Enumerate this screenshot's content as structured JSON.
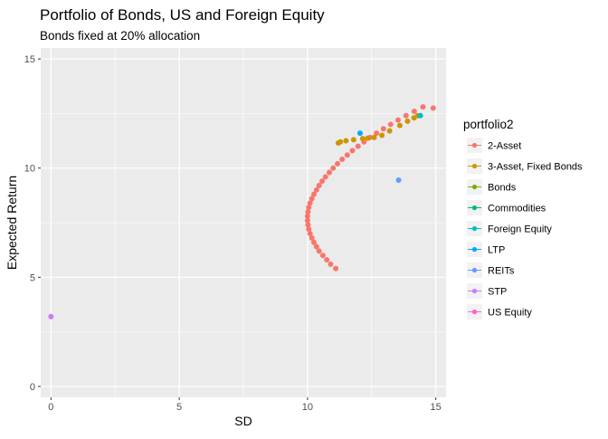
{
  "chart_data": {
    "type": "scatter",
    "title": "Portfolio of Bonds, US and Foreign Equity",
    "subtitle": "Bonds fixed at 20% allocation",
    "xlabel": "SD",
    "ylabel": "Expected Return",
    "xlim": [
      -0.4,
      15.4
    ],
    "ylim": [
      -0.5,
      15.5
    ],
    "x_ticks": [
      0,
      5,
      10,
      15
    ],
    "x_tick_labels": [
      "0",
      "5",
      "10",
      "15"
    ],
    "y_ticks": [
      0,
      5,
      10,
      15
    ],
    "y_tick_labels": [
      "0",
      "5",
      "10",
      "15"
    ],
    "grid": true,
    "legend_position": "right",
    "legend_title": "portfolio2",
    "series": [
      {
        "name": "2-Asset",
        "color": "#F8766D",
        "points": [
          [
            11.1,
            5.4
          ],
          [
            10.9,
            5.6
          ],
          [
            10.75,
            5.8
          ],
          [
            10.6,
            6.0
          ],
          [
            10.45,
            6.2
          ],
          [
            10.35,
            6.4
          ],
          [
            10.25,
            6.6
          ],
          [
            10.17,
            6.8
          ],
          [
            10.1,
            7.0
          ],
          [
            10.05,
            7.2
          ],
          [
            10.02,
            7.4
          ],
          [
            10.0,
            7.6
          ],
          [
            10.0,
            7.8
          ],
          [
            10.02,
            8.0
          ],
          [
            10.05,
            8.2
          ],
          [
            10.1,
            8.4
          ],
          [
            10.17,
            8.6
          ],
          [
            10.25,
            8.8
          ],
          [
            10.35,
            9.0
          ],
          [
            10.45,
            9.2
          ],
          [
            10.57,
            9.4
          ],
          [
            10.7,
            9.6
          ],
          [
            10.85,
            9.8
          ],
          [
            11.0,
            10.0
          ],
          [
            11.17,
            10.2
          ],
          [
            11.35,
            10.4
          ],
          [
            11.55,
            10.6
          ],
          [
            11.75,
            10.8
          ],
          [
            11.97,
            11.0
          ],
          [
            12.2,
            11.2
          ],
          [
            12.44,
            11.4
          ],
          [
            12.69,
            11.6
          ],
          [
            12.96,
            11.8
          ],
          [
            13.24,
            12.0
          ],
          [
            13.53,
            12.2
          ],
          [
            13.84,
            12.4
          ],
          [
            14.16,
            12.6
          ],
          [
            14.5,
            12.8
          ],
          [
            14.9,
            12.75
          ]
        ]
      },
      {
        "name": "3-Asset, Fixed Bonds",
        "color": "#CD9600",
        "points": [
          [
            11.2,
            11.15
          ],
          [
            11.28,
            11.2
          ],
          [
            11.5,
            11.25
          ],
          [
            11.8,
            11.3
          ],
          [
            12.15,
            11.35
          ],
          [
            12.35,
            11.37
          ],
          [
            12.6,
            11.4
          ],
          [
            12.9,
            11.5
          ],
          [
            13.2,
            11.7
          ],
          [
            13.6,
            11.95
          ],
          [
            13.9,
            12.15
          ],
          [
            14.15,
            12.3
          ],
          [
            14.3,
            12.4
          ]
        ]
      },
      {
        "name": "Bonds",
        "color": "#7CAE00",
        "points": []
      },
      {
        "name": "Commodities",
        "color": "#00BE67",
        "points": []
      },
      {
        "name": "Foreign Equity",
        "color": "#00BFC4",
        "points": [
          [
            14.4,
            12.4
          ]
        ]
      },
      {
        "name": "LTP",
        "color": "#00A9FF",
        "points": [
          [
            12.05,
            11.6
          ]
        ]
      },
      {
        "name": "REITs",
        "color": "#619CFF",
        "points": [
          [
            13.55,
            9.45
          ]
        ]
      },
      {
        "name": "STP",
        "color": "#C77CFF",
        "points": [
          [
            0.0,
            3.2
          ]
        ]
      },
      {
        "name": "US Equity",
        "color": "#FF61CC",
        "points": []
      }
    ]
  }
}
